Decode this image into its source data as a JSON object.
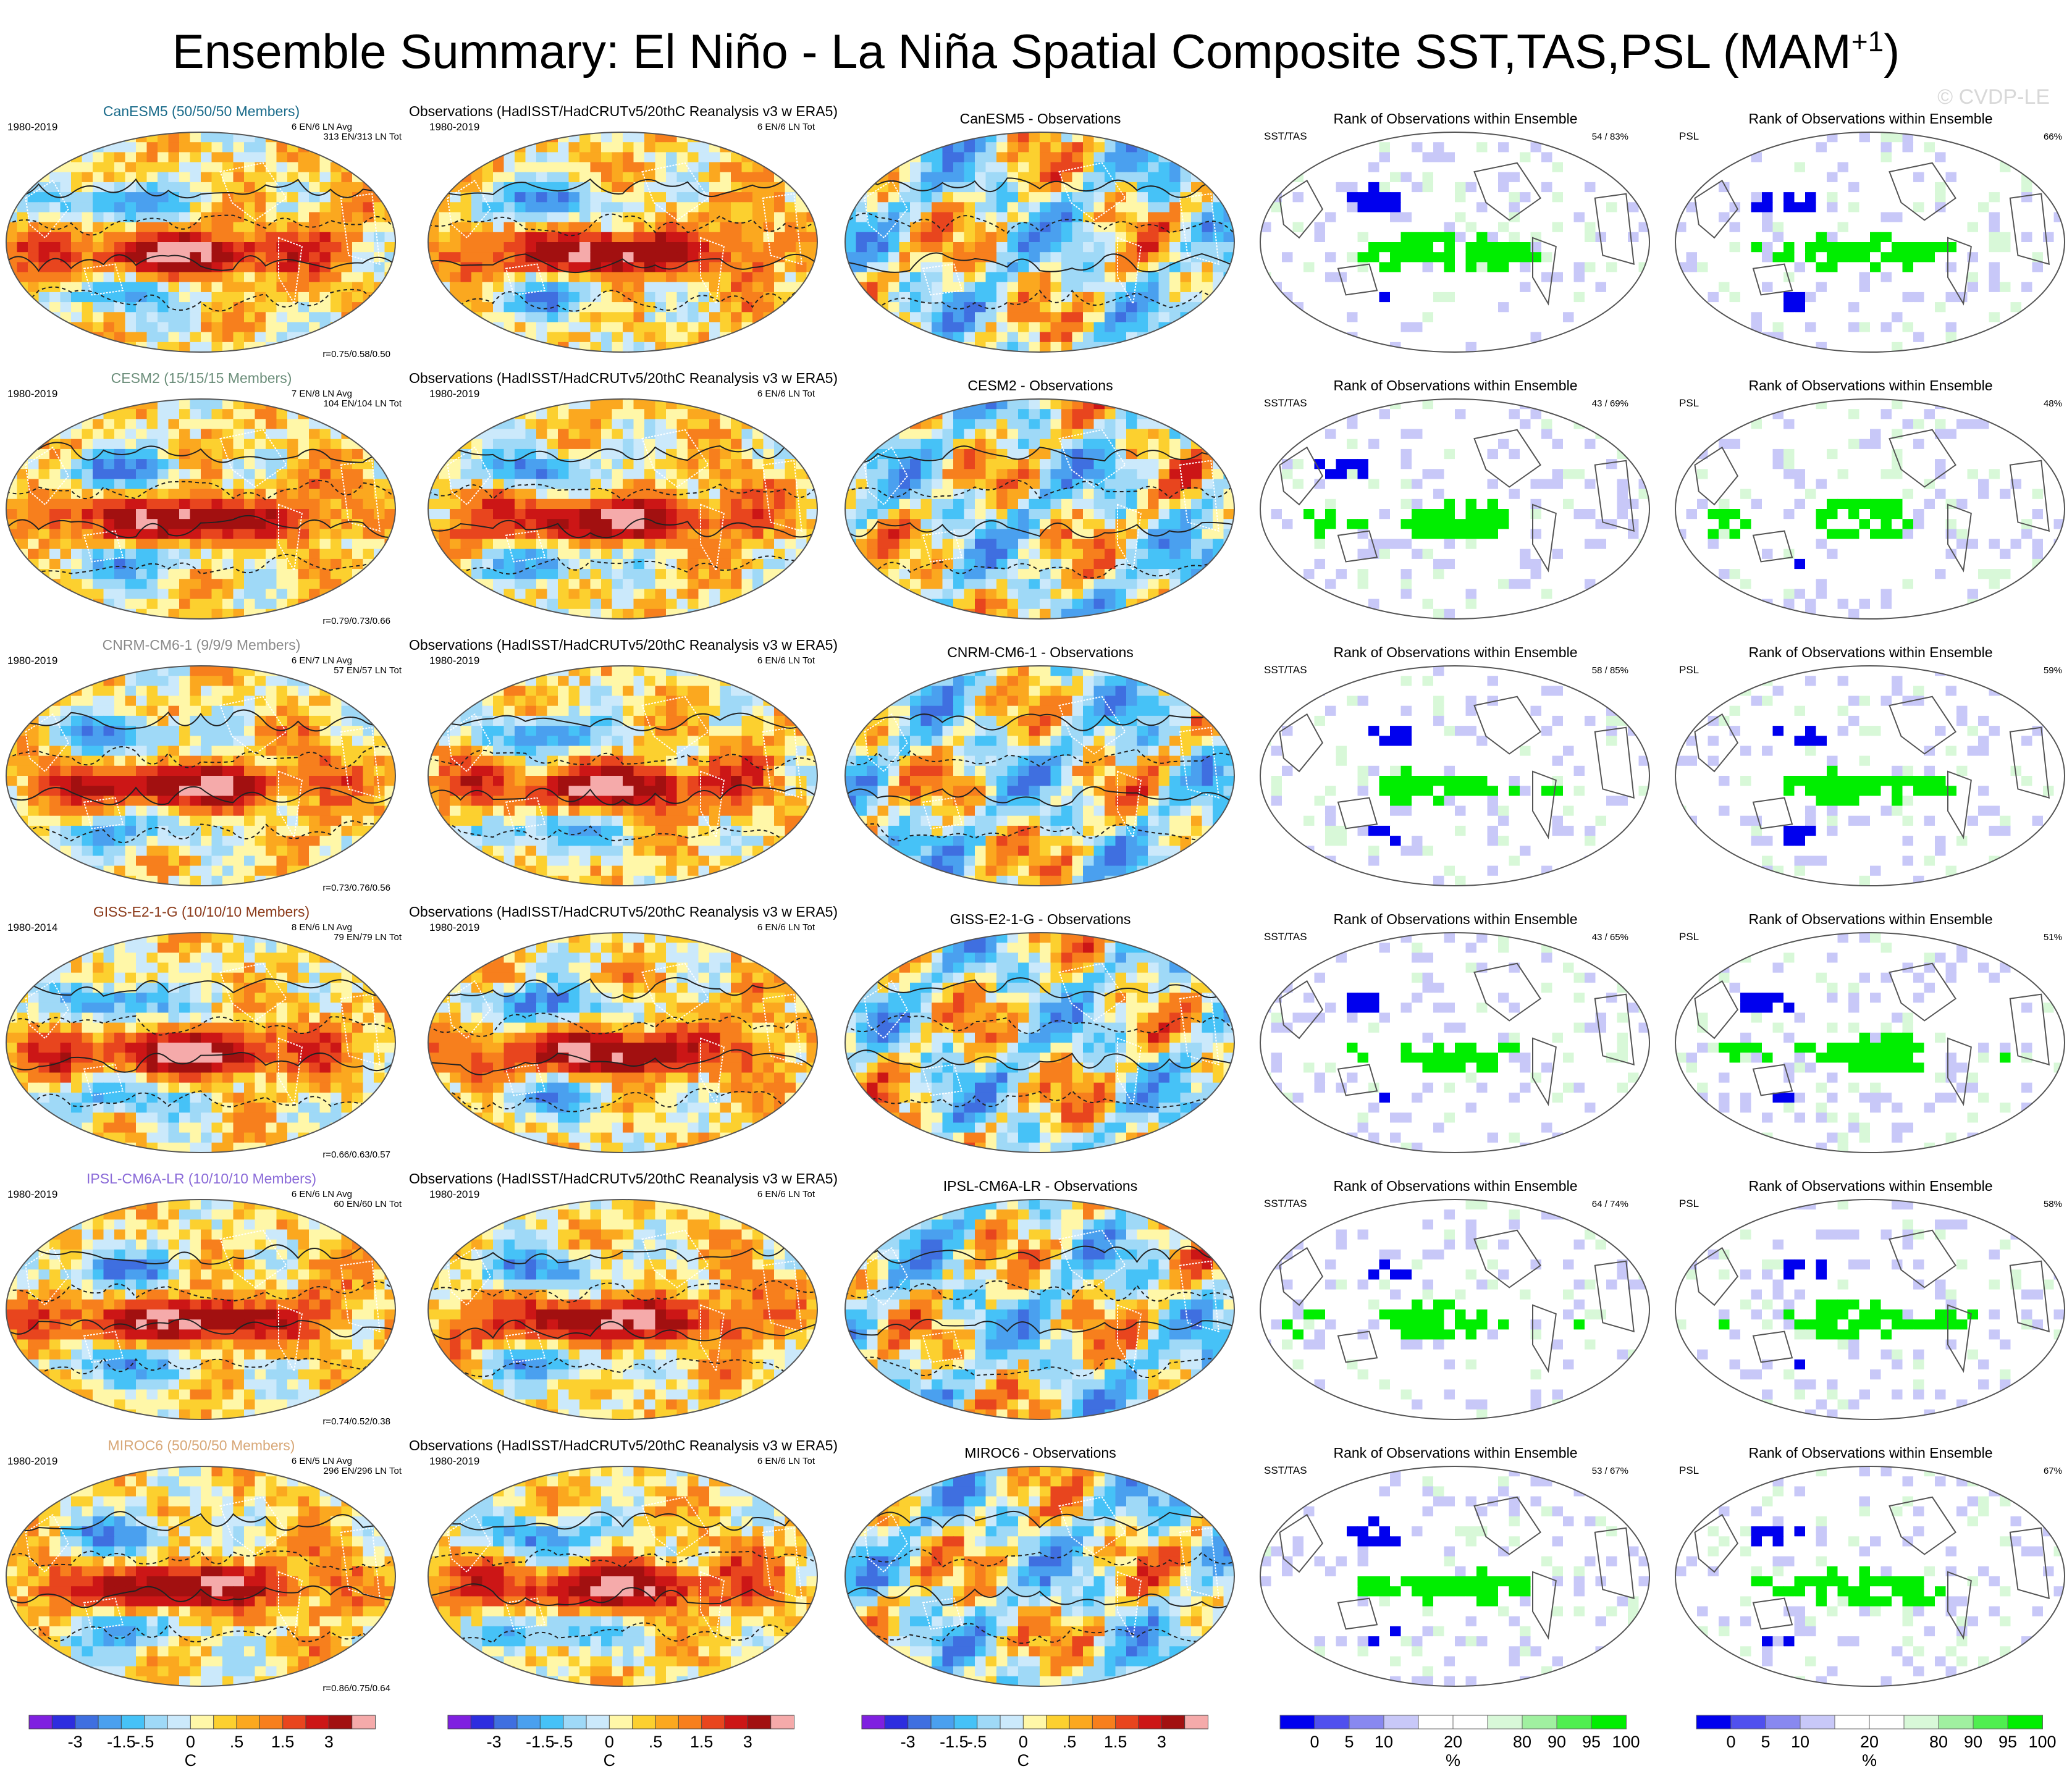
{
  "title": "Ensemble Summary: El Niño - La Niña Spatial Composite SST,TAS,PSL (MAM",
  "title_sup": "+1",
  "title_close": ")",
  "watermark": "© CVDP-LE",
  "colors": {
    "sst_scale": [
      "#7f20e0",
      "#2d2ddf",
      "#3f6fe0",
      "#4aa0ef",
      "#46c2f7",
      "#9fd9f7",
      "#cbe9fb",
      "#fff7a8",
      "#fcd02f",
      "#fba81f",
      "#f77f1d",
      "#e8451e",
      "#cc1616",
      "#a21010",
      "#f5aaaa"
    ],
    "rank_scale": [
      "#0000ee",
      "#5050ee",
      "#8888f0",
      "#c8c8f8",
      "#ffffff",
      "#ffffff",
      "#d8f8d8",
      "#a0f0a0",
      "#50ee50",
      "#00ee00"
    ]
  },
  "chart_data": {
    "type": "heatmap",
    "description_units": "composite anomaly maps (C) and percentile rank (%)",
    "columns": {
      "obs_title": "Observations (HadISST/HadCRUTv5/20thC Reanalysis v3 w ERA5)",
      "rank_title": "Rank of Observations within Ensemble",
      "sst_label": "SST/TAS",
      "psl_label": "PSL",
      "obs_period": "1980-2019",
      "obs_counts": "6 EN/6 LN Tot"
    },
    "rows": [
      {
        "model": "CanESM5",
        "members": "CanESM5 (50/50/50 Members)",
        "color": "#1a6b8a",
        "period": "1980-2019",
        "counts1": "6 EN/6 LN Avg",
        "counts2": "313 EN/313 LN Tot",
        "r": "r=0.75/0.58/0.50",
        "diff_title": "CanESM5 - Observations",
        "sst_rank": "54 /  83%",
        "psl_rank": "66%"
      },
      {
        "model": "CESM2",
        "members": "CESM2 (15/15/15 Members)",
        "color": "#6b8e7a",
        "period": "1980-2019",
        "counts1": "7 EN/8 LN Avg",
        "counts2": "104 EN/104 LN Tot",
        "r": "r=0.79/0.73/0.66",
        "diff_title": "CESM2 - Observations",
        "sst_rank": "43 /  69%",
        "psl_rank": "48%"
      },
      {
        "model": "CNRM-CM6-1",
        "members": "CNRM-CM6-1 (9/9/9 Members)",
        "color": "#8a8a8a",
        "period": "1980-2019",
        "counts1": "6 EN/7 LN Avg",
        "counts2": "57 EN/57 LN Tot",
        "r": "r=0.73/0.76/0.56",
        "diff_title": "CNRM-CM6-1 - Observations",
        "sst_rank": "58 /  85%",
        "psl_rank": "59%"
      },
      {
        "model": "GISS-E2-1-G",
        "members": "GISS-E2-1-G (10/10/10 Members)",
        "color": "#8b3a1a",
        "period": "1980-2014",
        "counts1": "8 EN/6 LN Avg",
        "counts2": "79 EN/79 LN Tot",
        "r": "r=0.66/0.63/0.57",
        "diff_title": "GISS-E2-1-G - Observations",
        "sst_rank": "43 /  65%",
        "psl_rank": "51%"
      },
      {
        "model": "IPSL-CM6A-LR",
        "members": "IPSL-CM6A-LR (10/10/10 Members)",
        "color": "#8a6ad8",
        "period": "1980-2019",
        "counts1": "6 EN/6 LN Avg",
        "counts2": "60 EN/60 LN Tot",
        "r": "r=0.74/0.52/0.38",
        "diff_title": "IPSL-CM6A-LR - Observations",
        "sst_rank": "64 /  74%",
        "psl_rank": "58%"
      },
      {
        "model": "MIROC6",
        "members": "MIROC6 (50/50/50 Members)",
        "color": "#d8a878",
        "period": "1980-2019",
        "counts1": "6 EN/5 LN Avg",
        "counts2": "296 EN/296 LN Tot",
        "r": "r=0.86/0.75/0.64",
        "diff_title": "MIROC6 - Observations",
        "sst_rank": "53 /  67%",
        "psl_rank": "67%"
      }
    ],
    "colorbar_sst": {
      "ticks": [
        "-3",
        "-1.5",
        "-.5",
        "0",
        ".5",
        "1.5",
        "3"
      ],
      "unit": "C"
    },
    "colorbar_rank": {
      "ticks": [
        "0",
        "5",
        "10",
        "20",
        "80",
        "90",
        "95",
        "100"
      ],
      "unit": "%"
    }
  }
}
